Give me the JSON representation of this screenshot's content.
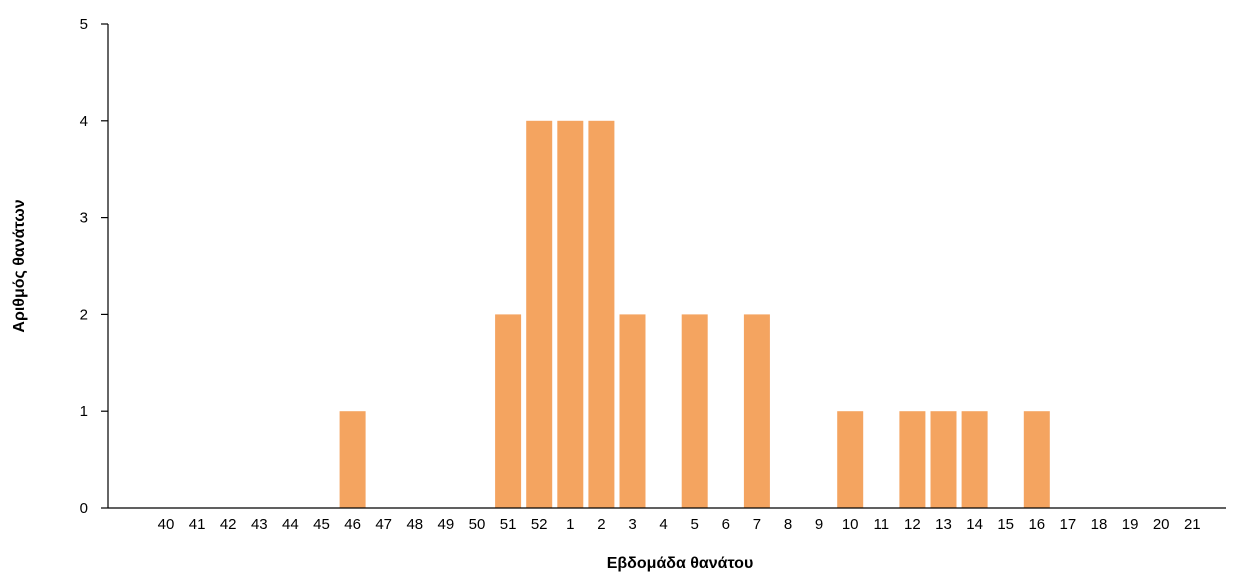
{
  "chart_data": {
    "type": "bar",
    "xlabel": "Εβδομάδα θανάτου",
    "ylabel": "Αριθμός θανάτων",
    "ylim": [
      0,
      5
    ],
    "yticks": [
      0,
      1,
      2,
      3,
      4,
      5
    ],
    "grid": false,
    "colors": {
      "bar": "#F4A460",
      "axis": "#000000"
    },
    "categories": [
      "40",
      "41",
      "42",
      "43",
      "44",
      "45",
      "46",
      "47",
      "48",
      "49",
      "50",
      "51",
      "52",
      "1",
      "2",
      "3",
      "4",
      "5",
      "6",
      "7",
      "8",
      "9",
      "10",
      "11",
      "12",
      "13",
      "14",
      "15",
      "16",
      "17",
      "18",
      "19",
      "20",
      "21"
    ],
    "values": [
      0,
      0,
      0,
      0,
      0,
      0,
      1,
      0,
      0,
      0,
      0,
      2,
      4,
      4,
      4,
      2,
      0,
      2,
      0,
      2,
      0,
      0,
      1,
      0,
      1,
      1,
      1,
      0,
      1,
      0,
      0,
      0,
      0,
      0
    ]
  }
}
